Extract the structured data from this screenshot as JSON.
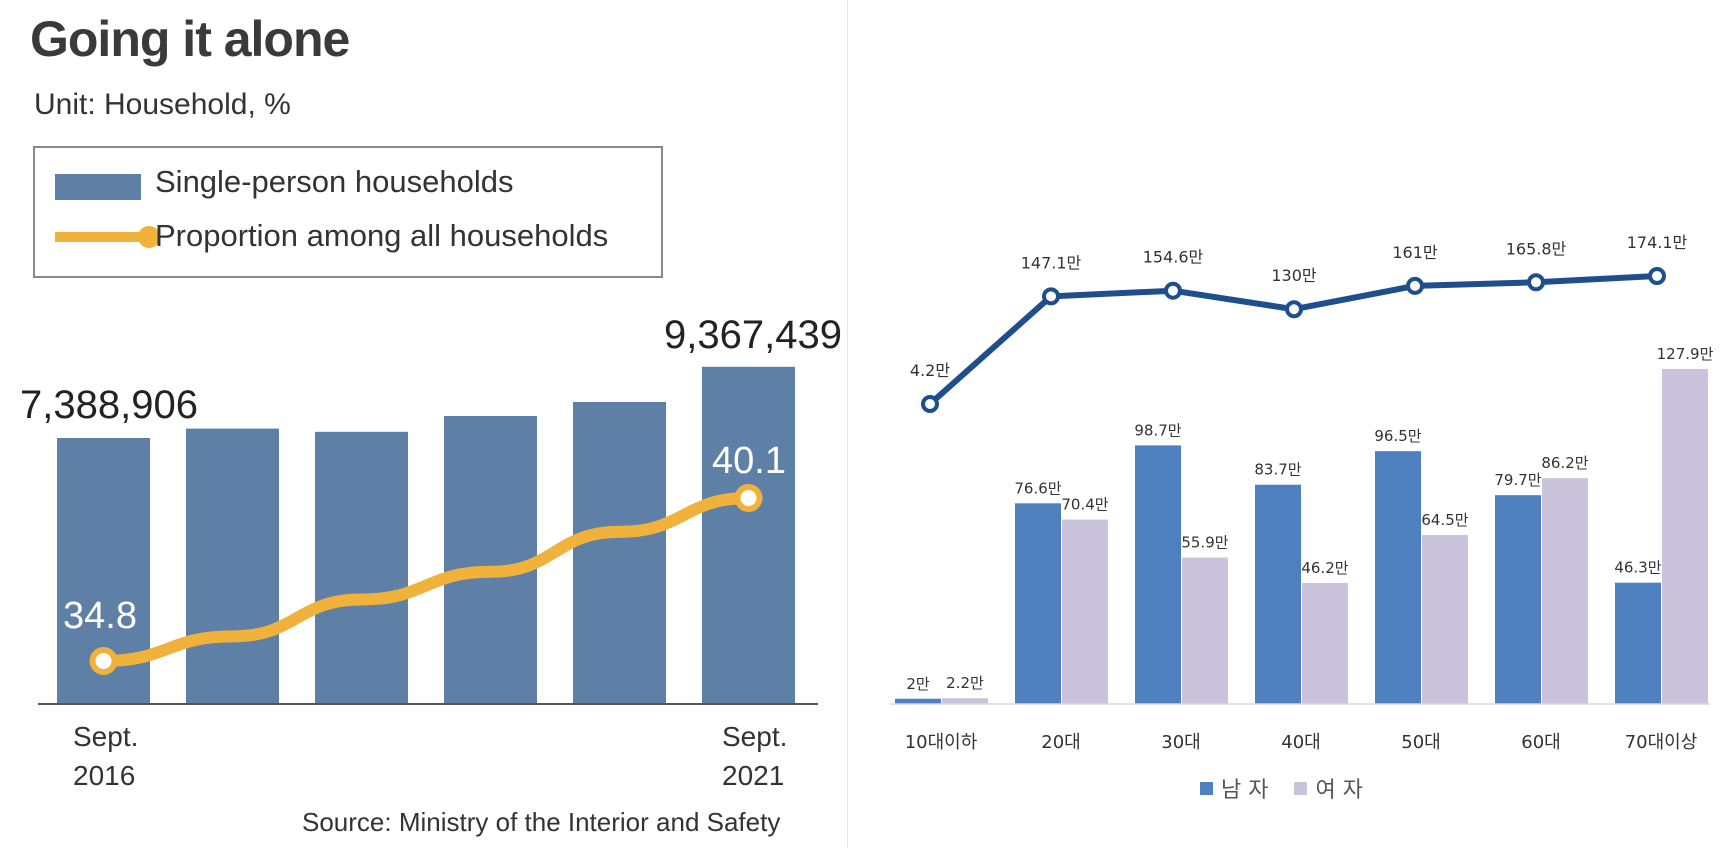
{
  "left_chart": {
    "title": "Going it alone",
    "unit": "Unit: Household, %",
    "legend": {
      "bar_label": "Single-person households",
      "line_label": "Proportion among all households"
    },
    "source": "Source: Ministry of the Interior and Safety",
    "first_value_label": "7,388,906",
    "last_value_label": "9,367,439",
    "first_pct_label": "34.8",
    "last_pct_label": "40.1",
    "x_label_first": [
      "Sept.",
      "2016"
    ],
    "x_label_last": [
      "Sept.",
      "2021"
    ]
  },
  "right_legend": {
    "male": "남 자",
    "female": "여 자"
  },
  "chart_data": [
    {
      "type": "bar",
      "title": "Going it alone",
      "subtitle": "Unit: Household, %",
      "categories": [
        "Sept. 2016",
        "",
        "",
        "",
        "",
        "Sept. 2021"
      ],
      "series": [
        {
          "name": "Single-person households",
          "values": [
            7388906,
            7650000,
            7560000,
            8000000,
            8390000,
            9367439
          ]
        },
        {
          "name": "Proportion among all households",
          "values": [
            34.8,
            35.6,
            36.8,
            37.7,
            39.0,
            40.1
          ]
        }
      ],
      "colors": {
        "bar": "#5e80a6",
        "line": "#f0b23a"
      },
      "grid": false,
      "legend_position": "top-left"
    },
    {
      "type": "bar",
      "categories": [
        "10대이하",
        "20대",
        "30대",
        "40대",
        "50대",
        "60대",
        "70대이상"
      ],
      "series": [
        {
          "name": "남 자",
          "values": [
            2,
            76.6,
            98.7,
            83.7,
            96.5,
            79.7,
            46.3
          ],
          "labels": [
            "2만",
            "76.6만",
            "98.7만",
            "83.7만",
            "96.5만",
            "79.7만",
            "46.3만"
          ]
        },
        {
          "name": "여 자",
          "values": [
            2.2,
            70.4,
            55.9,
            46.2,
            64.5,
            86.2,
            127.9
          ],
          "labels": [
            "2.2만",
            "70.4만",
            "55.9만",
            "46.2만",
            "64.5만",
            "86.2만",
            "127.9만"
          ]
        },
        {
          "name": "",
          "type": "line",
          "values": [
            4.2,
            147.1,
            154.6,
            130,
            161,
            165.8,
            174.1
          ],
          "labels": [
            "4.2만",
            "147.1만",
            "154.6만",
            "130만",
            "161만",
            "165.8만",
            "174.1만"
          ]
        }
      ],
      "colors": {
        "male": "#4e7fbf",
        "female": "#cbc2dc",
        "total_line": "#1f4e8c"
      },
      "grid": false,
      "legend_position": "bottom"
    }
  ]
}
